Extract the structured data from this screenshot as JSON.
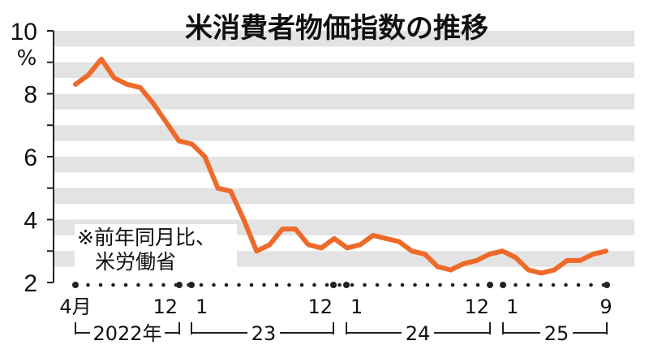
{
  "chart_data": {
    "type": "line",
    "title": "米消費者物価指数の推移",
    "ylabel": "%",
    "ylim": [
      2,
      10
    ],
    "y_ticks": [
      "2",
      "4",
      "6",
      "8",
      "10"
    ],
    "grid": "horizontal bands",
    "note_lines": [
      "※前年同月比、",
      "米労働省"
    ],
    "x_tick_labels": [
      "4月",
      "12",
      "1",
      "12",
      "1",
      "12",
      "1",
      "9"
    ],
    "year_labels": [
      "2022年",
      "23",
      "24",
      "25"
    ],
    "x": [
      "2022-04",
      "2022-05",
      "2022-06",
      "2022-07",
      "2022-08",
      "2022-09",
      "2022-10",
      "2022-11",
      "2022-12",
      "2023-01",
      "2023-02",
      "2023-03",
      "2023-04",
      "2023-05",
      "2023-06",
      "2023-07",
      "2023-08",
      "2023-09",
      "2023-10",
      "2023-11",
      "2023-12",
      "2024-01",
      "2024-02",
      "2024-03",
      "2024-04",
      "2024-05",
      "2024-06",
      "2024-07",
      "2024-08",
      "2024-09",
      "2024-10",
      "2024-11",
      "2024-12",
      "2025-01",
      "2025-02",
      "2025-03",
      "2025-04",
      "2025-05",
      "2025-06",
      "2025-07",
      "2025-08",
      "2025-09"
    ],
    "series": [
      {
        "values": [
          8.3,
          8.6,
          9.1,
          8.5,
          8.3,
          8.2,
          7.7,
          7.1,
          6.5,
          6.4,
          6.0,
          5.0,
          4.9,
          4.0,
          3.0,
          3.2,
          3.7,
          3.7,
          3.2,
          3.1,
          3.4,
          3.1,
          3.2,
          3.5,
          3.4,
          3.3,
          3.0,
          2.9,
          2.5,
          2.4,
          2.6,
          2.7,
          2.9,
          3.0,
          2.8,
          2.4,
          2.3,
          2.4,
          2.7,
          2.7,
          2.9,
          3.0
        ],
        "color": "#ee6a2a"
      }
    ]
  }
}
